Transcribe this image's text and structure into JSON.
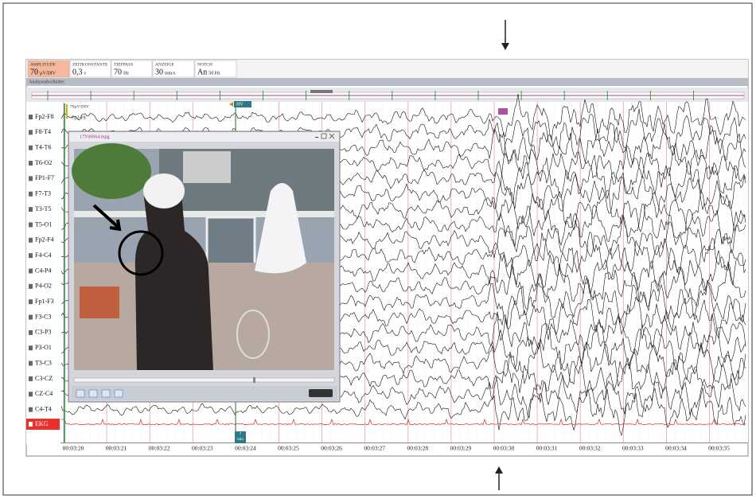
{
  "toolbar": [
    {
      "label": "AMPLITUDE",
      "value": "70",
      "unit": "µV/DIV"
    },
    {
      "label": "ZEITKONSTANTE",
      "value": "0,3",
      "unit": "s"
    },
    {
      "label": "TIEFPASS",
      "value": "70",
      "unit": "Hz"
    },
    {
      "label": "ANZEIGE",
      "value": "30",
      "unit": "mm/s"
    },
    {
      "label": "NOTCH",
      "value": "An",
      "unit": "50 Hz"
    }
  ],
  "analysis_label": "Analyseabschnitte:",
  "channels": [
    "Fp2-F8",
    "F8-T4",
    "T4-T6",
    "T6-O2",
    "FP1-F7",
    "F7-T3",
    "T3-T5",
    "T5-O1",
    "Fp2-F4",
    "F4-C4",
    "C4-P4",
    "P4-O2",
    "Fp1-F3",
    "F3-C3",
    "C3-P3",
    "P3-O1",
    "T3-C3",
    "C3-CZ",
    "CZ-C4",
    "C4-T4",
    "EKG"
  ],
  "time_labels": [
    "00:03:20",
    "00:03:21",
    "00:03:22",
    "00:03:23",
    "00:03:24",
    "00:03:25",
    "00:03:26",
    "00:03:27",
    "00:03:28",
    "00:03:29",
    "00:03:30",
    "00:03:31",
    "00:03:32",
    "00:03:33",
    "00:03:34",
    "00:03:35"
  ],
  "video": {
    "title": "17Y00064.mpg"
  },
  "markers": {
    "amplitude": "70µV/DIV",
    "channel": "Fp2-F8",
    "hv": "HV",
    "time_note": [
      "7",
      "min"
    ]
  }
}
